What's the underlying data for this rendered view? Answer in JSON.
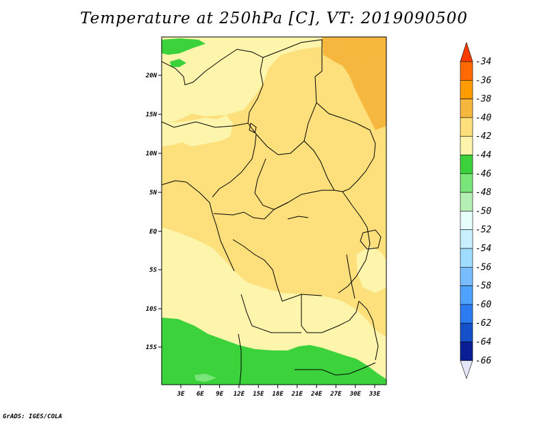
{
  "title": "Temperature at 250hPa [C], VT: 2019090500",
  "footer": "GrADS: IGES/COLA",
  "map": {
    "lat_labels": [
      "20N",
      "15N",
      "10N",
      "5N",
      "EQ",
      "5S",
      "10S",
      "15S"
    ],
    "lon_labels": [
      "3E",
      "6E",
      "9E",
      "12E",
      "15E",
      "18E",
      "21E",
      "24E",
      "27E",
      "30E",
      "33E"
    ]
  },
  "colorbar": {
    "labels": [
      "-34",
      "-36",
      "-38",
      "-40",
      "-42",
      "-44",
      "-46",
      "-48",
      "-50",
      "-52",
      "-54",
      "-56",
      "-58",
      "-60",
      "-62",
      "-64",
      "-66"
    ],
    "colors": [
      "#ff3c00",
      "#ff6a00",
      "#ff9d00",
      "#f5b73d",
      "#fde07b",
      "#fdf5ac",
      "#3cd23c",
      "#78e678",
      "#b4f0b4",
      "#e6fffa",
      "#c8f0ff",
      "#a0dcff",
      "#78beff",
      "#4da3ff",
      "#2d7bf0",
      "#1450c8",
      "#0a1e96",
      "#0a0a5a",
      "#e6e6fa"
    ]
  },
  "fills": {
    "c42": "#fdf5ac",
    "c40": "#fde07b",
    "c38": "#f5b73d",
    "c44": "#3cd23c",
    "c46": "#78e678"
  }
}
